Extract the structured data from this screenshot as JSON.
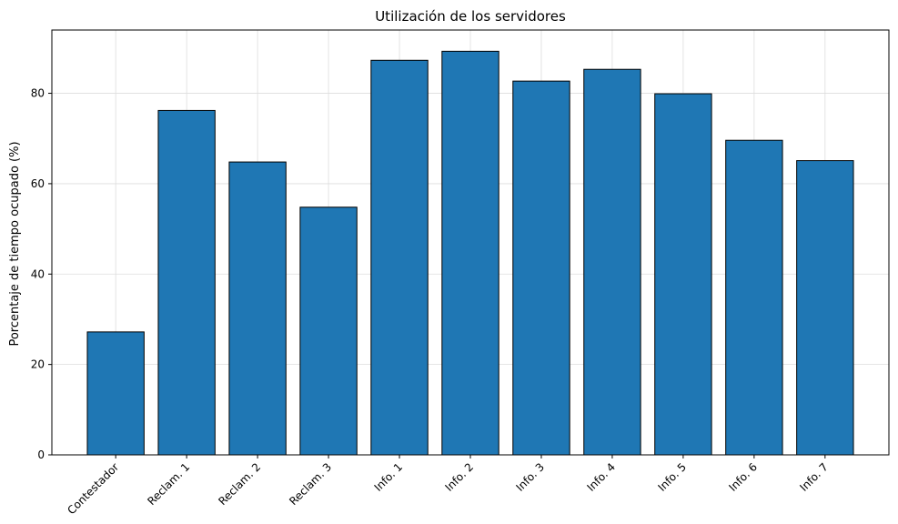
{
  "chart_data": {
    "type": "bar",
    "title": "Utilización de los servidores",
    "xlabel": "",
    "ylabel": "Porcentaje de tiempo ocupado (%)",
    "categories": [
      "Contestador",
      "Reclam. 1",
      "Reclam. 2",
      "Reclam. 3",
      "Info. 1",
      "Info. 2",
      "Info. 3",
      "Info. 4",
      "Info. 5",
      "Info. 6",
      "Info. 7"
    ],
    "values": [
      27.2,
      76.2,
      64.8,
      54.8,
      87.3,
      89.3,
      82.7,
      85.3,
      79.9,
      69.6,
      65.1
    ],
    "ylim": [
      0,
      94
    ],
    "yticks": [
      0,
      20,
      40,
      60,
      80
    ],
    "grid": true,
    "xtick_rotation": 45,
    "colors": {
      "bar": "#1f77b4",
      "edge": "#000000",
      "grid": "#dddddd"
    }
  }
}
